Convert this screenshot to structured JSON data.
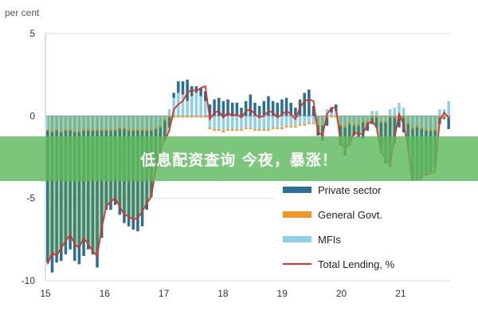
{
  "overlay": {
    "banner_text": "低息配资查询 今夜，暴涨！"
  },
  "colors": {
    "private": "#2b6f94",
    "govt": "#f7941d",
    "mfi": "#8fd0e6",
    "total": "#e03026",
    "green_fill": "#4f9a46"
  },
  "chart_data": {
    "type": "bar",
    "y_unit_label": "per cent",
    "ylim": [
      -10,
      5
    ],
    "yticks": [
      5,
      0,
      -5,
      -10
    ],
    "xlim": [
      15,
      21.85
    ],
    "xticks": [
      "15",
      "16",
      "17",
      "18",
      "19",
      "20",
      "21"
    ],
    "grid": "horizontal",
    "legend_position": "bottom-right",
    "series": [
      {
        "name": "Private sector",
        "kind": "bar",
        "color": "#2b6f94",
        "values": [
          -8.0,
          -8.5,
          -8.0,
          -7.8,
          -7.5,
          -7.2,
          -7.8,
          -8.0,
          -7.6,
          -7.2,
          -7.5,
          -8.3,
          -6.5,
          -4.8,
          -4.8,
          -4.5,
          -5.2,
          -5.7,
          -5.8,
          -6.0,
          -6.1,
          -5.8,
          -4.8,
          -4.0,
          -2.5,
          -2.0,
          -1.2,
          -0.6,
          0.3,
          0.7,
          0.8,
          1.3,
          0.6,
          0.4,
          0.5,
          0.6,
          0.7,
          1.0,
          1.1,
          0.9,
          1.0,
          0.8,
          0.8,
          0.5,
          0.9,
          1.3,
          0.8,
          0.6,
          0.9,
          1.2,
          0.9,
          0.8,
          1.0,
          1.1,
          0.8,
          0.5,
          1.0,
          1.4,
          1.6,
          0.6,
          -0.6,
          -0.9,
          -0.5,
          0.3,
          0.4,
          -1.2,
          -1.7,
          -1.3,
          -0.6,
          -0.7,
          -1.0,
          -0.5,
          -0.4,
          -0.6,
          -1.8,
          -2.5,
          -3.0,
          -1.6,
          -0.6,
          -0.9,
          -1.6,
          -3.8,
          -3.6,
          -3.0,
          -2.7,
          -2.5,
          -2.2,
          -0.4,
          -0.1,
          -0.7
        ]
      },
      {
        "name": "General Govt.",
        "kind": "bar",
        "color": "#f7941d",
        "values": [
          -0.1,
          -0.1,
          -0.1,
          -0.1,
          -0.1,
          -0.1,
          -0.1,
          -0.1,
          -0.1,
          -0.1,
          -0.1,
          -0.1,
          -0.1,
          -0.1,
          -0.1,
          -0.1,
          -0.1,
          -0.1,
          -0.1,
          -0.1,
          -0.1,
          -0.1,
          -0.1,
          -0.1,
          -0.1,
          -0.1,
          -0.1,
          -0.1,
          -0.1,
          -0.1,
          -0.1,
          -0.1,
          -0.1,
          -0.1,
          -0.1,
          -0.1,
          -0.1,
          -0.1,
          -0.1,
          -0.1,
          -0.1,
          -0.1,
          -0.1,
          -0.1,
          -0.1,
          -0.1,
          -0.1,
          -0.1,
          -0.1,
          -0.1,
          -0.1,
          -0.1,
          -0.1,
          -0.1,
          -0.1,
          -0.1,
          -0.1,
          -0.1,
          -0.1,
          -0.1,
          -0.1,
          -0.1,
          -0.1,
          -0.1,
          -0.1,
          -0.1,
          -0.1,
          -0.1,
          -0.1,
          -0.1,
          -0.1,
          -0.1,
          -0.1,
          -0.1,
          -0.1,
          -0.1,
          -0.1,
          -0.1,
          -0.1,
          -0.1,
          -0.1,
          -0.1,
          -0.1,
          -0.1,
          -0.1,
          -0.1,
          -0.1,
          -0.1,
          -0.1,
          -0.1
        ]
      },
      {
        "name": "MFIs",
        "kind": "bar",
        "color": "#8fd0e6",
        "values": [
          -0.8,
          -0.9,
          -0.8,
          -0.9,
          -0.8,
          -0.8,
          -0.9,
          -0.9,
          -0.8,
          -0.8,
          -0.8,
          -0.8,
          -0.8,
          -0.8,
          -0.8,
          -0.8,
          -0.7,
          -0.7,
          -0.8,
          -0.8,
          -0.8,
          -0.8,
          -0.8,
          -0.8,
          -0.7,
          -0.6,
          -0.2,
          0.4,
          1.1,
          1.4,
          1.3,
          0.9,
          1.2,
          1.4,
          1.2,
          0.9,
          -0.7,
          -0.8,
          -0.8,
          -0.9,
          -0.8,
          -0.8,
          -0.8,
          -0.8,
          -0.7,
          -0.7,
          -0.8,
          -0.8,
          -0.8,
          -0.8,
          -0.7,
          -0.7,
          -0.7,
          -0.6,
          -0.6,
          -0.6,
          -0.5,
          -0.5,
          -0.4,
          -0.4,
          -0.5,
          -0.5,
          0.4,
          0.2,
          0.3,
          -0.5,
          -0.6,
          -0.4,
          -0.5,
          -0.5,
          -0.3,
          -0.3,
          0.3,
          0.3,
          -0.3,
          -0.3,
          0.4,
          0.5,
          0.8,
          0.5,
          -0.4,
          -0.7,
          -0.6,
          -0.7,
          -0.8,
          -0.8,
          -0.8,
          0.4,
          0.4,
          0.9
        ]
      },
      {
        "name": "Total Lending, %",
        "kind": "line",
        "color": "#e03026",
        "values": [
          -9.0,
          -8.3,
          -8.5,
          -8.0,
          -7.6,
          -7.2,
          -7.8,
          -8.0,
          -7.4,
          -7.8,
          -8.2,
          -8.5,
          -6.8,
          -5.5,
          -5.2,
          -5.0,
          -5.5,
          -6.0,
          -6.1,
          -6.3,
          -6.2,
          -5.8,
          -5.3,
          -4.9,
          -3.2,
          -2.0,
          -1.5,
          -0.9,
          0.4,
          0.7,
          0.9,
          1.4,
          1.6,
          1.5,
          1.7,
          1.8,
          -0.2,
          0.2,
          0.3,
          -0.1,
          0.2,
          0.0,
          0.1,
          -0.1,
          0.3,
          0.4,
          0.1,
          -0.1,
          0.0,
          0.3,
          0.2,
          -0.1,
          0.1,
          0.3,
          0.1,
          -0.2,
          0.5,
          0.9,
          1.0,
          0.9,
          -1.0,
          -1.2,
          0.1,
          0.5,
          0.5,
          -1.6,
          -2.0,
          -1.7,
          -1.0,
          -1.1,
          -1.1,
          -0.5,
          -0.3,
          -0.7,
          -2.2,
          -2.6,
          -3.0,
          -1.3,
          0.1,
          -0.5,
          -2.0,
          -4.2,
          -4.4,
          -3.5,
          -3.6,
          -3.5,
          -3.4,
          -0.3,
          0.2,
          -0.1
        ]
      }
    ]
  }
}
